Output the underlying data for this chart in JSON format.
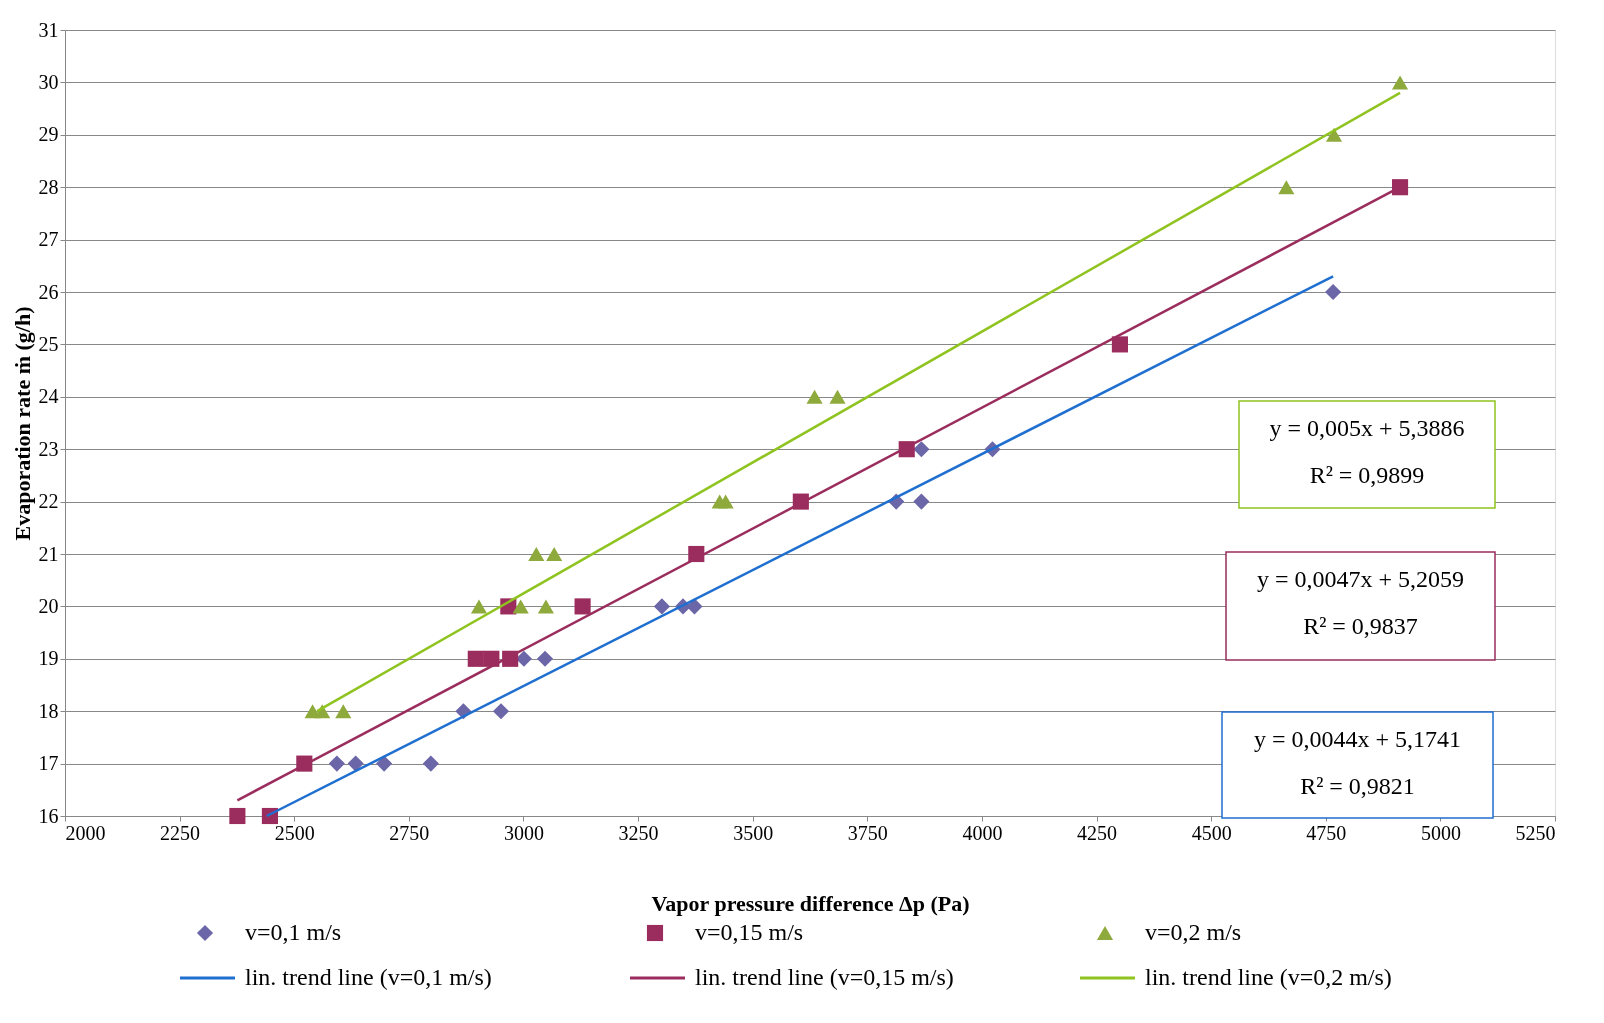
{
  "chart_data": {
    "type": "scatter",
    "xlabel": "Vapor pressure difference Δp (Pa)",
    "ylabel": "Evaporation rate ṁ (g/h)",
    "xlim": [
      2000,
      5250
    ],
    "xticks": [
      2000,
      2250,
      2500,
      2750,
      3000,
      3250,
      3500,
      3750,
      4000,
      4250,
      4500,
      4750,
      5000,
      5250
    ],
    "ylim": [
      16,
      31
    ],
    "yticks": [
      16,
      17,
      18,
      19,
      20,
      21,
      22,
      23,
      24,
      25,
      26,
      27,
      28,
      29,
      30,
      31
    ],
    "grid": "y",
    "legend": "bottom",
    "series": [
      {
        "name": "v=0,1 m/s",
        "marker": "diamond",
        "color": "#6a66a8",
        "x": [
          2593,
          2634,
          2696,
          2798,
          2869,
          2951,
          3001,
          3047,
          3302,
          3348,
          3373,
          3813,
          3868,
          3868,
          4023,
          4766
        ],
        "values": [
          17,
          17,
          17,
          17,
          18,
          18,
          19,
          19,
          20,
          20,
          20,
          22,
          22,
          23,
          23,
          26
        ]
      },
      {
        "name": "v=0,15 m/s",
        "marker": "square",
        "color": "#9b2d5e",
        "x": [
          2376,
          2447,
          2522,
          2896,
          2930,
          2971,
          2967,
          3129,
          3377,
          3605,
          3836,
          4301,
          4912
        ],
        "values": [
          16,
          16,
          17,
          19,
          19,
          19,
          20,
          20,
          21,
          22,
          23,
          25,
          28
        ]
      },
      {
        "name": "v=0,2 m/s",
        "marker": "triangle",
        "color": "#8faa3c",
        "x": [
          2540,
          2561,
          2607,
          2903,
          2994,
          3049,
          3028,
          3067,
          3428,
          3441,
          3635,
          3685,
          4664,
          4768,
          4912
        ],
        "values": [
          18,
          18,
          18,
          20,
          20,
          20,
          21,
          21,
          22,
          22,
          24,
          24,
          28,
          29,
          30
        ]
      },
      {
        "name": "lin. trend line (v=0,1 m/s)",
        "type": "line",
        "line_style": "solid",
        "color": "#1f6fd0",
        "x": [
          2440,
          4766
        ],
        "values": [
          16.0,
          26.3
        ]
      },
      {
        "name": "lin. trend line (v=0,15 m/s)",
        "type": "line",
        "line_style": "solid",
        "color": "#9b2d5e",
        "x": [
          2376,
          4912
        ],
        "values": [
          16.3,
          28.0
        ]
      },
      {
        "name": "lin. trend line (v=0,2 m/s)",
        "type": "line",
        "line_style": "solid",
        "color": "#8fc31f",
        "x": [
          2550,
          4912
        ],
        "values": [
          18.0,
          29.8
        ]
      }
    ],
    "annotations": [
      "y = 0,0044x + 5,1741",
      "R² = 0,9821",
      "y = 0,0047x + 5,2059",
      "R² = 0,9837",
      "y = 0,005x + 5,3886",
      "R² = 0,9899"
    ]
  }
}
